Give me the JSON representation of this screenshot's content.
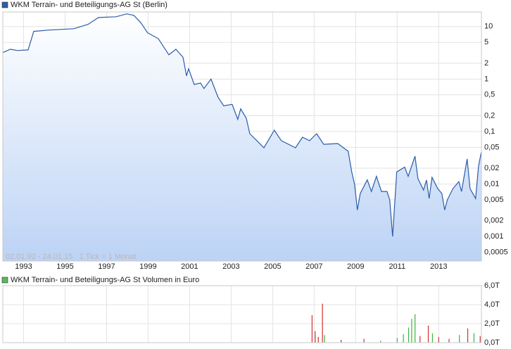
{
  "chart_data": [
    {
      "type": "line",
      "series": [
        {
          "name": "WKM Terrain- und Beteiligungs-AG St (Berlin)",
          "color": "#2a5caa",
          "values": [
            3.2,
            3.7,
            3.5,
            3.6,
            8.1,
            8.6,
            9.1,
            11.0,
            14.9,
            15.4,
            17.5,
            16.4,
            12.0,
            7.6,
            5.9,
            2.9,
            3.7,
            2.6,
            1.15,
            1.57,
            0.79,
            0.84,
            0.66,
            1.0,
            0.45,
            0.31,
            0.33,
            0.17,
            0.27,
            0.18,
            0.091,
            0.067,
            0.049,
            0.106,
            0.067,
            0.049,
            0.078,
            0.067,
            0.091,
            0.057,
            0.059,
            0.042,
            0.017,
            0.0098,
            0.0032,
            0.0066,
            0.012,
            0.0072,
            0.014,
            0.0072,
            0.0072,
            0.005,
            0.001,
            0.0041,
            0.017,
            0.021,
            0.014,
            0.034,
            0.0126,
            0.0077,
            0.0119,
            0.0053,
            0.0134,
            0.0082,
            0.0066,
            0.0032,
            0.005,
            0.0082,
            0.0111,
            0.0072,
            0.03,
            0.0082,
            0.0053,
            0.022,
            0.04
          ]
        }
      ],
      "x": [
        1992.0,
        1992.37,
        1992.71,
        1993.22,
        1993.49,
        1994.24,
        1995.42,
        1996.1,
        1996.61,
        1997.46,
        1997.97,
        1998.31,
        1998.64,
        1998.98,
        1999.49,
        2000.0,
        2000.34,
        2000.68,
        2000.85,
        2000.95,
        2001.22,
        2001.53,
        2001.69,
        2002.03,
        2002.37,
        2002.64,
        2003.05,
        2003.32,
        2003.46,
        2003.73,
        2003.9,
        2004.24,
        2004.58,
        2005.08,
        2005.42,
        2006.1,
        2006.44,
        2006.78,
        2007.12,
        2007.46,
        2008.14,
        2008.64,
        2008.81,
        2008.95,
        2009.08,
        2009.22,
        2009.56,
        2009.76,
        2010.0,
        2010.24,
        2010.51,
        2010.64,
        2010.78,
        2010.88,
        2010.98,
        2011.36,
        2011.53,
        2011.86,
        2012.0,
        2012.27,
        2012.41,
        2012.54,
        2012.68,
        2012.95,
        2013.15,
        2013.29,
        2013.42,
        2013.69,
        2013.97,
        2014.1,
        2014.37,
        2014.51,
        2014.78,
        2014.92,
        2015.05
      ],
      "annotation": "02.01.92 - 24.01.15   1 Tick = 1 Monat",
      "xlim": [
        1992,
        2015.06
      ],
      "xticks": [
        1993,
        1995,
        1997,
        1999,
        2001,
        2003,
        2005,
        2007,
        2009,
        2011,
        2013
      ],
      "ylim": [
        0.00034,
        19
      ],
      "yticks": [
        10,
        5,
        2,
        1,
        {
          "value": 0.5,
          "label": "0,5"
        },
        {
          "value": 0.2,
          "label": "0,2"
        },
        {
          "value": 0.1,
          "label": "0,1"
        },
        {
          "value": 0.05,
          "label": "0,05"
        },
        {
          "value": 0.02,
          "label": "0,02"
        },
        {
          "value": 0.01,
          "label": "0,01"
        },
        {
          "value": 0.005,
          "label": "0,005"
        },
        {
          "value": 0.002,
          "label": "0,002"
        },
        {
          "value": 0.001,
          "label": "0,001"
        },
        {
          "value": 0.0005,
          "label": "0,0005"
        }
      ],
      "log_scale": true,
      "grid": true,
      "y_axis_side": "right"
    },
    {
      "type": "bar",
      "series": [
        {
          "name": "WKM Terrain- und Beteiligungs-AG St Volumen in Euro",
          "color": "#5cb85c",
          "values": [
            2900,
            1200,
            600,
            4100,
            800,
            300,
            400,
            200,
            500,
            900,
            1600,
            2500,
            3000,
            700,
            1800,
            1000,
            600,
            400,
            800,
            1500,
            1000,
            700
          ],
          "bar_colors": [
            "#d03030",
            "#d03030",
            "#d03030",
            "#d03030",
            "#3cb43c",
            "#d03030",
            "#d03030",
            "#3cb43c",
            "#3cb43c",
            "#3cb43c",
            "#3cb43c",
            "#3cb43c",
            "#3cb43c",
            "#d03030",
            "#d03030",
            "#3cb43c",
            "#d03030",
            "#d03030",
            "#3cb43c",
            "#d03030",
            "#3cb43c",
            "#d03030"
          ]
        }
      ],
      "x": [
        2006.9,
        2007.05,
        2007.2,
        2007.4,
        2007.5,
        2008.3,
        2009.4,
        2010.2,
        2011.0,
        2011.3,
        2011.55,
        2011.7,
        2011.86,
        2012.1,
        2012.5,
        2012.7,
        2013.0,
        2013.5,
        2014.0,
        2014.4,
        2014.7,
        2015.0
      ],
      "xlim": [
        1992,
        2015.06
      ],
      "ylim": [
        0,
        6000
      ],
      "yticks": [
        {
          "value": 6000,
          "label": "6,0T"
        },
        {
          "value": 4000,
          "label": "4,0T"
        },
        {
          "value": 2000,
          "label": "2,0T"
        },
        {
          "value": 0,
          "label": "0,0T"
        }
      ],
      "grid": true,
      "y_axis_side": "right"
    }
  ]
}
